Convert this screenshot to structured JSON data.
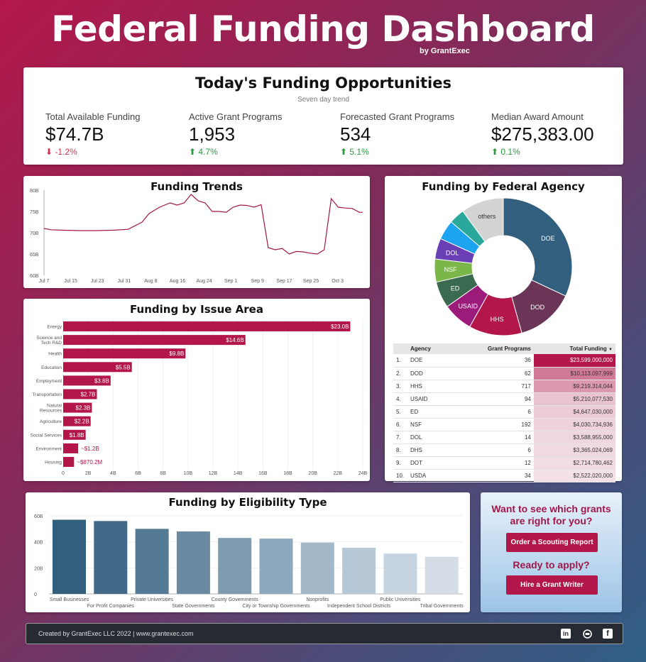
{
  "header": {
    "title": "Federal Funding Dashboard",
    "byline": "by GrantExec"
  },
  "kpis": {
    "title": "Today's Funding Opportunities",
    "subtitle": "Seven day trend",
    "items": [
      {
        "label": "Total Available Funding",
        "value": "$74.7B",
        "delta": "-1.2%",
        "direction": "down"
      },
      {
        "label": "Active Grant Programs",
        "value": "1,953",
        "delta": "4.7%",
        "direction": "up"
      },
      {
        "label": "Forecasted Grant Programs",
        "value": "534",
        "delta": "5.1%",
        "direction": "up"
      },
      {
        "label": "Median Award Amount",
        "value": "$275,383.00",
        "delta": "0.1%",
        "direction": "up"
      }
    ]
  },
  "trends": {
    "title": "Funding Trends",
    "y_ticks": [
      "80B",
      "75B",
      "70B",
      "65B",
      "60B"
    ],
    "x_ticks": [
      "Jul 7",
      "Jul 15",
      "Jul 23",
      "Jul 31",
      "Aug 8",
      "Aug 16",
      "Aug 24",
      "Sep 1",
      "Sep 9",
      "Sep 17",
      "Sep 25",
      "Oct 3"
    ]
  },
  "issue": {
    "title": "Funding by Issue Area"
  },
  "agency": {
    "title": "Funding by Federal Agency",
    "table_headers": {
      "agency": "Agency",
      "programs": "Grant Programs",
      "total": "Total Funding",
      "sort_icon": "▼"
    },
    "rows": [
      {
        "rank": "1.",
        "agency": "DOE",
        "programs": "36",
        "total": "$23,599,000,000"
      },
      {
        "rank": "2.",
        "agency": "DOD",
        "programs": "62",
        "total": "$10,113,097,999"
      },
      {
        "rank": "3.",
        "agency": "HHS",
        "programs": "717",
        "total": "$9,219,314,044"
      },
      {
        "rank": "4.",
        "agency": "USAID",
        "programs": "94",
        "total": "$5,210,077,530"
      },
      {
        "rank": "5.",
        "agency": "ED",
        "programs": "6",
        "total": "$4,647,030,000"
      },
      {
        "rank": "6.",
        "agency": "NSF",
        "programs": "192",
        "total": "$4,030,734,936"
      },
      {
        "rank": "7.",
        "agency": "DOL",
        "programs": "14",
        "total": "$3,588,955,000"
      },
      {
        "rank": "8.",
        "agency": "DHS",
        "programs": "6",
        "total": "$3,365,024,069"
      },
      {
        "rank": "9.",
        "agency": "DOT",
        "programs": "12",
        "total": "$2,714,780,462"
      },
      {
        "rank": "10.",
        "agency": "USDA",
        "programs": "34",
        "total": "$2,522,020,000"
      }
    ]
  },
  "eligibility": {
    "title": "Funding by Eligibility Type"
  },
  "cta": {
    "question": "Want to see which grants are right for you?",
    "scout_button": "Order a Scouting Report",
    "apply_question": "Ready to apply?",
    "hire_button": "Hire a Grant Writer"
  },
  "footer": {
    "text": "Created by GrantExec LLC 2022  |  www.grantexec.com",
    "icons": [
      "linkedin-icon",
      "youtube-icon",
      "facebook-icon"
    ]
  },
  "colors": {
    "accent": "#b3174a",
    "down": "#d0314a",
    "up": "#2e9a40"
  },
  "chart_data": [
    {
      "id": "funding-trends",
      "type": "line",
      "title": "Funding Trends",
      "ylim": [
        60,
        80
      ],
      "y_unit": "B",
      "x_range": [
        "Jul 7",
        "Oct 7"
      ],
      "x": [
        0,
        2,
        5,
        10,
        15,
        20,
        24,
        28,
        30,
        33,
        36,
        38,
        40,
        42,
        44,
        46,
        48,
        50,
        52,
        54,
        56,
        58,
        60,
        62,
        64,
        66,
        68,
        70,
        72,
        74,
        76,
        78,
        80,
        82,
        84,
        86,
        88,
        90,
        91
      ],
      "values": [
        71,
        70.7,
        70.6,
        70.5,
        70.5,
        70.6,
        70.8,
        72.5,
        74.5,
        76,
        77,
        76.5,
        77,
        79,
        77.5,
        77,
        75,
        75,
        74.8,
        76,
        76.5,
        76.4,
        76,
        76.6,
        66.5,
        66,
        66.3,
        65,
        65.6,
        65.5,
        65.2,
        65,
        66,
        78,
        76,
        75.8,
        75.7,
        74.8,
        74.8
      ]
    },
    {
      "id": "issue-area",
      "type": "bar",
      "title": "Funding by Issue Area",
      "orientation": "horizontal",
      "categories": [
        "Energy",
        "Science and Tech R&D",
        "Health",
        "Education",
        "Employment",
        "Transportation",
        "Natural Resources",
        "Agriculture",
        "Social Services",
        "Environment",
        "Housing"
      ],
      "values": [
        23.0,
        14.6,
        9.8,
        5.5,
        3.8,
        2.7,
        2.3,
        2.2,
        1.8,
        1.2,
        0.87
      ],
      "labels": [
        "$23.0B",
        "$14.6B",
        "$9.8B",
        "$5.5B",
        "$3.8B",
        "$2.7B",
        "$2.3B",
        "$2.2B",
        "$1.8B",
        "~$1.2B",
        "~$870.2M"
      ],
      "xlim": [
        0,
        24
      ],
      "x_ticks": [
        "0",
        "2B",
        "4B",
        "6B",
        "8B",
        "10B",
        "12B",
        "14B",
        "16B",
        "18B",
        "20B",
        "22B",
        "24B"
      ]
    },
    {
      "id": "federal-agency",
      "type": "pie",
      "title": "Funding by Federal Agency",
      "donut": true,
      "categories": [
        "DOE",
        "DOD",
        "HHS",
        "USAID",
        "ED",
        "NSF",
        "DOL",
        "",
        "",
        "others"
      ],
      "values": [
        23.6,
        10.1,
        9.2,
        5.2,
        4.6,
        4.0,
        3.6,
        3.4,
        2.7,
        7.4
      ],
      "colors": [
        "#325f7d",
        "#6b3557",
        "#b3174a",
        "#9c1a7a",
        "#3a6a50",
        "#7ab648",
        "#6a3fb5",
        "#1da4f0",
        "#2aa89c",
        "#d3d3d3"
      ]
    },
    {
      "id": "eligibility",
      "type": "bar",
      "title": "Funding by Eligibility Type",
      "categories": [
        "Small Businesses",
        "For Profit Companies",
        "Private Universities",
        "State Governments",
        "County Governments",
        "City or Township Governments",
        "Nonprofits",
        "Independent School Districts",
        "Public Universities",
        "Tribal Governments"
      ],
      "values": [
        57,
        56,
        50,
        48,
        43,
        42.5,
        39.5,
        35.5,
        31,
        28.5
      ],
      "ylim": [
        0,
        60
      ],
      "y_ticks": [
        "60B",
        "40B",
        "20B",
        "0"
      ],
      "colors": [
        "#325f7d",
        "#426a88",
        "#557a95",
        "#6a8aa2",
        "#7e9bb0",
        "#8ea9bd",
        "#a3b9ca",
        "#b6c8d6",
        "#c6d4df",
        "#d4dde6"
      ]
    }
  ]
}
